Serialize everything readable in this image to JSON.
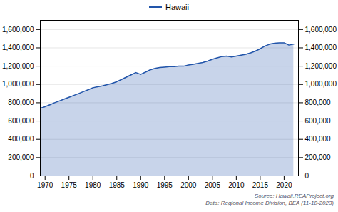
{
  "chart_data": {
    "type": "area",
    "x": [
      1969,
      1970,
      1971,
      1972,
      1973,
      1974,
      1975,
      1976,
      1977,
      1978,
      1979,
      1980,
      1981,
      1982,
      1983,
      1984,
      1985,
      1986,
      1987,
      1988,
      1989,
      1990,
      1991,
      1992,
      1993,
      1994,
      1995,
      1996,
      1997,
      1998,
      1999,
      2000,
      2001,
      2002,
      2003,
      2004,
      2005,
      2006,
      2007,
      2008,
      2009,
      2010,
      2011,
      2012,
      2013,
      2014,
      2015,
      2016,
      2017,
      2018,
      2019,
      2020,
      2021,
      2022
    ],
    "series": [
      {
        "name": "Hawaii",
        "color": "#2255aa",
        "values": [
          740000,
          757000,
          778000,
          800000,
          820000,
          840000,
          860000,
          880000,
          900000,
          921000,
          942000,
          964000,
          975000,
          985000,
          998000,
          1012000,
          1030000,
          1055000,
          1080000,
          1105000,
          1130000,
          1110000,
          1135000,
          1160000,
          1175000,
          1185000,
          1190000,
          1195000,
          1195000,
          1200000,
          1200000,
          1212000,
          1220000,
          1230000,
          1240000,
          1255000,
          1275000,
          1290000,
          1305000,
          1310000,
          1300000,
          1310000,
          1320000,
          1330000,
          1345000,
          1365000,
          1390000,
          1420000,
          1440000,
          1450000,
          1455000,
          1455000,
          1430000,
          1440000
        ]
      }
    ],
    "xlim": [
      1969,
      2023
    ],
    "xticks": [
      1970,
      1975,
      1980,
      1985,
      1990,
      1995,
      2000,
      2005,
      2010,
      2015,
      2020
    ],
    "ylim": [
      0,
      1700000
    ],
    "yticks": [
      0,
      {
        "value": 200000,
        "label": "200,000"
      },
      {
        "value": 400000,
        "label": "400,000"
      },
      {
        "value": 600000,
        "label": "600,000"
      },
      {
        "value": 800000,
        "label": "800,000"
      },
      {
        "value": 1000000,
        "label": "1,000,000"
      },
      {
        "value": 1200000,
        "label": "1,200,000"
      },
      {
        "value": 1400000,
        "label": "1,400,000"
      },
      {
        "value": 1600000,
        "label": "1,600,000"
      }
    ],
    "grid": true,
    "legend": "top",
    "annotations": [
      "Source: Hawaii.REAProject.org",
      "Data: Regional Income Division, BEA (11-18-2023)"
    ]
  }
}
